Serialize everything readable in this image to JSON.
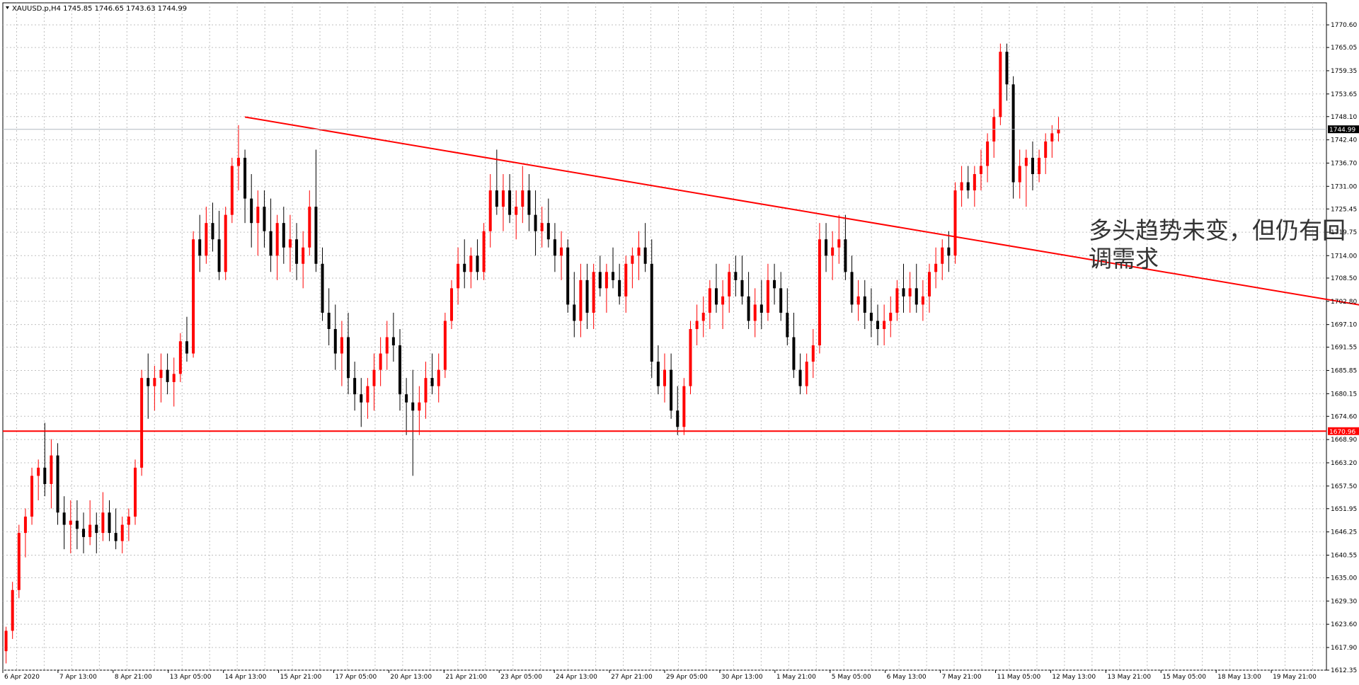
{
  "chart_header": {
    "symbol_info": "XAUUSD.p,H4  1745.85 1746.65 1743.63 1744.99",
    "menu_icon": "triangle-down-icon"
  },
  "annotation": {
    "line1": "多头趋势未变，但仍有回",
    "line2": "调需求"
  },
  "colors": {
    "bull": "#ff0000",
    "bear": "#000000",
    "grid": "#c0c0c0",
    "axis": "#000000",
    "support": "#ff0000",
    "trendline": "#ff0000",
    "current_price_line": "#b0b8c0",
    "background": "#ffffff"
  },
  "chart_data": {
    "type": "candlestick",
    "symbol": "XAUUSD.p",
    "timeframe": "H4",
    "ylim": [
      1612.35,
      1776.0
    ],
    "y_ticks": [
      "1770.60",
      "1765.05",
      "1759.35",
      "1753.65",
      "1748.10",
      "1742.40",
      "1736.70",
      "1731.00",
      "1725.45",
      "1719.75",
      "1714.00",
      "1708.50",
      "1702.80",
      "1697.10",
      "1691.55",
      "1685.85",
      "1680.15",
      "1674.60",
      "1668.90",
      "1663.20",
      "1657.50",
      "1651.95",
      "1646.25",
      "1640.55",
      "1635.00",
      "1629.30",
      "1623.60",
      "1617.90",
      "1612.35"
    ],
    "x_labels": [
      "6 Apr 2020",
      "7 Apr 13:00",
      "8 Apr 21:00",
      "13 Apr 05:00",
      "14 Apr 13:00",
      "15 Apr 21:00",
      "17 Apr 05:00",
      "20 Apr 13:00",
      "21 Apr 21:00",
      "23 Apr 05:00",
      "24 Apr 13:00",
      "27 Apr 21:00",
      "29 Apr 05:00",
      "30 Apr 13:00",
      "1 May 21:00",
      "5 May 05:00",
      "6 May 13:00",
      "7 May 21:00",
      "11 May 05:00",
      "12 May 13:00",
      "13 May 21:00",
      "15 May 05:00",
      "18 May 13:00",
      "19 May 21:00"
    ],
    "current_price": 1744.99,
    "current_price_label": "1744.99",
    "support_level": 1670.96,
    "support_label": "1670.96",
    "trendline": {
      "start": {
        "bar": 37,
        "price": 1748.0
      },
      "end": {
        "bar": 258,
        "price": 1689.0
      }
    },
    "bar_count": 205,
    "candles": [
      [
        1617,
        1623,
        1614,
        1622
      ],
      [
        1622,
        1634,
        1620,
        1632
      ],
      [
        1632,
        1648,
        1630,
        1646
      ],
      [
        1646,
        1652,
        1640,
        1650
      ],
      [
        1650,
        1662,
        1648,
        1660
      ],
      [
        1660,
        1664,
        1654,
        1662
      ],
      [
        1662,
        1673,
        1655,
        1658
      ],
      [
        1658,
        1669,
        1652,
        1665
      ],
      [
        1665,
        1668,
        1648,
        1651
      ],
      [
        1651,
        1655,
        1642,
        1648
      ],
      [
        1648,
        1654,
        1641,
        1649
      ],
      [
        1649,
        1654,
        1642,
        1647
      ],
      [
        1647,
        1651,
        1641,
        1645
      ],
      [
        1645,
        1654,
        1643,
        1648
      ],
      [
        1648,
        1651,
        1641,
        1646
      ],
      [
        1646,
        1656,
        1644,
        1651
      ],
      [
        1651,
        1654,
        1644,
        1646
      ],
      [
        1646,
        1652,
        1642,
        1644
      ],
      [
        1644,
        1650,
        1641,
        1648
      ],
      [
        1648,
        1652,
        1644,
        1650
      ],
      [
        1650,
        1664,
        1648,
        1662
      ],
      [
        1662,
        1686,
        1660,
        1684
      ],
      [
        1684,
        1690,
        1674,
        1682
      ],
      [
        1682,
        1687,
        1676,
        1684
      ],
      [
        1684,
        1690,
        1678,
        1686
      ],
      [
        1686,
        1690,
        1680,
        1683
      ],
      [
        1683,
        1689,
        1677,
        1685
      ],
      [
        1685,
        1695,
        1683,
        1693
      ],
      [
        1693,
        1699,
        1688,
        1690
      ],
      [
        1690,
        1720,
        1689,
        1718
      ],
      [
        1718,
        1724,
        1710,
        1714
      ],
      [
        1714,
        1726,
        1712,
        1722
      ],
      [
        1722,
        1727,
        1715,
        1718
      ],
      [
        1718,
        1725,
        1708,
        1710
      ],
      [
        1710,
        1726,
        1708,
        1724
      ],
      [
        1724,
        1738,
        1722,
        1736
      ],
      [
        1736,
        1746,
        1730,
        1738
      ],
      [
        1738,
        1740,
        1722,
        1728
      ],
      [
        1728,
        1734,
        1716,
        1722
      ],
      [
        1722,
        1730,
        1714,
        1726
      ],
      [
        1726,
        1730,
        1716,
        1720
      ],
      [
        1720,
        1728,
        1710,
        1714
      ],
      [
        1714,
        1724,
        1708,
        1722
      ],
      [
        1722,
        1726,
        1712,
        1716
      ],
      [
        1716,
        1724,
        1710,
        1718
      ],
      [
        1718,
        1722,
        1708,
        1712
      ],
      [
        1712,
        1720,
        1706,
        1716
      ],
      [
        1716,
        1730,
        1714,
        1726
      ],
      [
        1726,
        1740,
        1710,
        1712
      ],
      [
        1712,
        1716,
        1698,
        1700
      ],
      [
        1700,
        1706,
        1692,
        1696
      ],
      [
        1696,
        1702,
        1686,
        1690
      ],
      [
        1690,
        1698,
        1682,
        1694
      ],
      [
        1694,
        1700,
        1680,
        1684
      ],
      [
        1684,
        1688,
        1676,
        1680
      ],
      [
        1680,
        1684,
        1672,
        1678
      ],
      [
        1678,
        1684,
        1674,
        1682
      ],
      [
        1682,
        1690,
        1676,
        1686
      ],
      [
        1686,
        1694,
        1682,
        1690
      ],
      [
        1690,
        1698,
        1686,
        1694
      ],
      [
        1694,
        1700,
        1688,
        1692
      ],
      [
        1692,
        1696,
        1676,
        1680
      ],
      [
        1680,
        1684,
        1670,
        1678
      ],
      [
        1678,
        1686,
        1660,
        1676
      ],
      [
        1676,
        1682,
        1670,
        1678
      ],
      [
        1678,
        1688,
        1674,
        1684
      ],
      [
        1684,
        1690,
        1680,
        1682
      ],
      [
        1682,
        1690,
        1678,
        1686
      ],
      [
        1686,
        1700,
        1684,
        1698
      ],
      [
        1698,
        1708,
        1696,
        1706
      ],
      [
        1706,
        1716,
        1702,
        1712
      ],
      [
        1712,
        1718,
        1706,
        1710
      ],
      [
        1710,
        1716,
        1706,
        1714
      ],
      [
        1714,
        1718,
        1708,
        1710
      ],
      [
        1710,
        1722,
        1708,
        1720
      ],
      [
        1720,
        1734,
        1716,
        1730
      ],
      [
        1730,
        1740,
        1724,
        1726
      ],
      [
        1726,
        1734,
        1720,
        1730
      ],
      [
        1730,
        1734,
        1722,
        1724
      ],
      [
        1724,
        1730,
        1718,
        1726
      ],
      [
        1726,
        1736,
        1722,
        1730
      ],
      [
        1730,
        1734,
        1720,
        1724
      ],
      [
        1724,
        1730,
        1714,
        1720
      ],
      [
        1720,
        1726,
        1716,
        1722
      ],
      [
        1722,
        1728,
        1716,
        1718
      ],
      [
        1718,
        1722,
        1710,
        1714
      ],
      [
        1714,
        1720,
        1708,
        1716
      ],
      [
        1716,
        1718,
        1700,
        1702
      ],
      [
        1702,
        1710,
        1694,
        1698
      ],
      [
        1698,
        1712,
        1694,
        1708
      ],
      [
        1708,
        1712,
        1696,
        1700
      ],
      [
        1700,
        1712,
        1696,
        1710
      ],
      [
        1710,
        1714,
        1704,
        1706
      ],
      [
        1706,
        1712,
        1700,
        1710
      ],
      [
        1710,
        1716,
        1706,
        1708
      ],
      [
        1708,
        1712,
        1702,
        1704
      ],
      [
        1704,
        1714,
        1700,
        1712
      ],
      [
        1712,
        1716,
        1706,
        1714
      ],
      [
        1714,
        1720,
        1708,
        1716
      ],
      [
        1716,
        1722,
        1710,
        1712
      ],
      [
        1712,
        1718,
        1684,
        1688
      ],
      [
        1688,
        1692,
        1680,
        1682
      ],
      [
        1682,
        1690,
        1678,
        1686
      ],
      [
        1686,
        1690,
        1674,
        1676
      ],
      [
        1676,
        1682,
        1670,
        1672
      ],
      [
        1672,
        1684,
        1670,
        1682
      ],
      [
        1682,
        1698,
        1680,
        1696
      ],
      [
        1696,
        1702,
        1692,
        1698
      ],
      [
        1698,
        1704,
        1694,
        1700
      ],
      [
        1700,
        1708,
        1696,
        1706
      ],
      [
        1706,
        1712,
        1700,
        1702
      ],
      [
        1702,
        1708,
        1696,
        1704
      ],
      [
        1704,
        1712,
        1700,
        1710
      ],
      [
        1710,
        1714,
        1704,
        1708
      ],
      [
        1708,
        1714,
        1702,
        1704
      ],
      [
        1704,
        1710,
        1696,
        1698
      ],
      [
        1698,
        1706,
        1694,
        1702
      ],
      [
        1702,
        1708,
        1696,
        1700
      ],
      [
        1700,
        1712,
        1698,
        1708
      ],
      [
        1708,
        1712,
        1702,
        1706
      ],
      [
        1706,
        1710,
        1698,
        1700
      ],
      [
        1700,
        1706,
        1692,
        1694
      ],
      [
        1694,
        1700,
        1684,
        1686
      ],
      [
        1686,
        1690,
        1680,
        1682
      ],
      [
        1682,
        1690,
        1680,
        1688
      ],
      [
        1688,
        1696,
        1684,
        1692
      ],
      [
        1692,
        1722,
        1690,
        1718
      ],
      [
        1718,
        1722,
        1710,
        1714
      ],
      [
        1714,
        1720,
        1708,
        1716
      ],
      [
        1716,
        1724,
        1712,
        1718
      ],
      [
        1718,
        1724,
        1708,
        1710
      ],
      [
        1710,
        1714,
        1700,
        1702
      ],
      [
        1702,
        1708,
        1698,
        1704
      ],
      [
        1704,
        1708,
        1696,
        1700
      ],
      [
        1700,
        1706,
        1694,
        1698
      ],
      [
        1698,
        1702,
        1692,
        1696
      ],
      [
        1696,
        1702,
        1692,
        1698
      ],
      [
        1698,
        1704,
        1694,
        1700
      ],
      [
        1700,
        1708,
        1698,
        1706
      ],
      [
        1706,
        1712,
        1700,
        1704
      ],
      [
        1704,
        1710,
        1700,
        1706
      ],
      [
        1706,
        1712,
        1700,
        1702
      ],
      [
        1702,
        1708,
        1698,
        1704
      ],
      [
        1704,
        1712,
        1700,
        1710
      ],
      [
        1710,
        1716,
        1706,
        1712
      ],
      [
        1712,
        1718,
        1708,
        1716
      ],
      [
        1716,
        1720,
        1710,
        1714
      ],
      [
        1714,
        1732,
        1712,
        1730
      ],
      [
        1730,
        1736,
        1726,
        1732
      ],
      [
        1732,
        1736,
        1728,
        1730
      ],
      [
        1730,
        1736,
        1726,
        1734
      ],
      [
        1734,
        1740,
        1730,
        1736
      ],
      [
        1736,
        1744,
        1732,
        1742
      ],
      [
        1742,
        1750,
        1738,
        1748
      ],
      [
        1748,
        1766,
        1746,
        1764
      ],
      [
        1764,
        1766,
        1752,
        1756
      ],
      [
        1756,
        1758,
        1728,
        1732
      ],
      [
        1732,
        1740,
        1728,
        1736
      ],
      [
        1736,
        1740,
        1726,
        1738
      ],
      [
        1738,
        1742,
        1730,
        1734
      ],
      [
        1734,
        1740,
        1732,
        1738
      ],
      [
        1738,
        1744,
        1734,
        1742
      ],
      [
        1742,
        1746,
        1738,
        1744
      ],
      [
        1744,
        1748,
        1742,
        1745
      ]
    ]
  }
}
